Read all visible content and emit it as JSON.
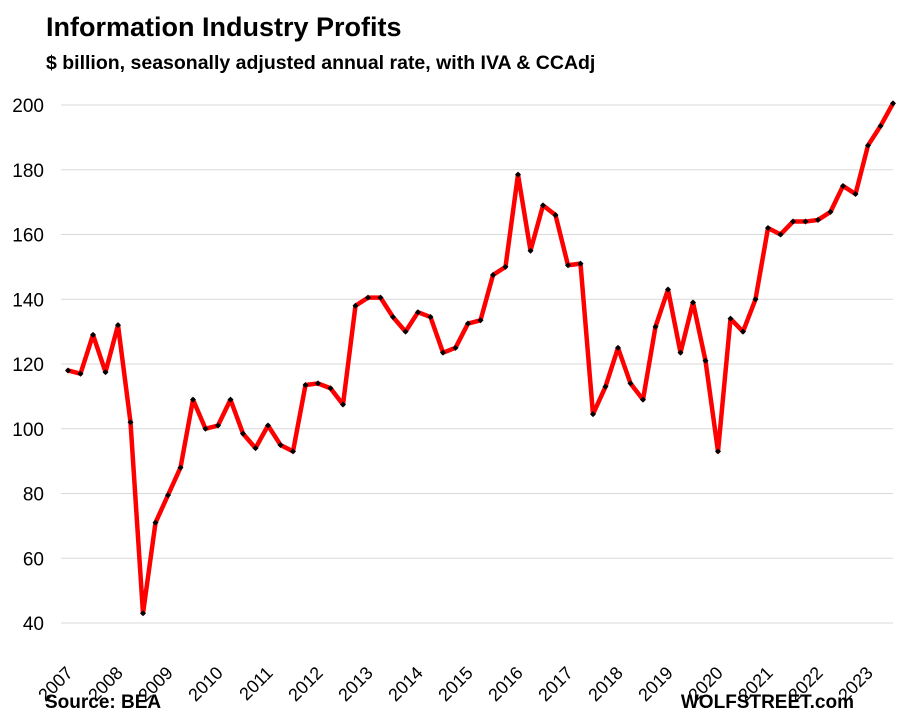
{
  "header": {
    "title": "Information Industry Profits",
    "subtitle": "$ billion, seasonally adjusted annual rate, with IVA & CCAdj"
  },
  "footer": {
    "source": "Source: BEA",
    "brand": "WOLFSTREET.com"
  },
  "chart_data": {
    "type": "line",
    "title": "Information Industry Profits",
    "subtitle": "$ billion, seasonally adjusted annual rate, with IVA & CCAdj",
    "x_tick_labels": [
      "2007",
      "2008",
      "2009",
      "2010",
      "2011",
      "2012",
      "2013",
      "2014",
      "2015",
      "2016",
      "2017",
      "2018",
      "2019",
      "2020",
      "2021",
      "2022",
      "2023"
    ],
    "y_ticks": [
      40,
      60,
      80,
      100,
      120,
      140,
      160,
      180,
      200
    ],
    "ylim": [
      40,
      200
    ],
    "grid": true,
    "line_color": "#ff0000",
    "marker_color": "#000000",
    "series": [
      {
        "x": [
          "2007 Q1",
          "2007 Q2",
          "2007 Q3",
          "2007 Q4",
          "2008 Q1",
          "2008 Q2",
          "2008 Q3",
          "2008 Q4",
          "2009 Q1",
          "2009 Q2",
          "2009 Q3",
          "2009 Q4",
          "2010 Q1",
          "2010 Q2",
          "2010 Q3",
          "2010 Q4",
          "2011 Q1",
          "2011 Q2",
          "2011 Q3",
          "2011 Q4",
          "2012 Q1",
          "2012 Q2",
          "2012 Q3",
          "2012 Q4",
          "2013 Q1",
          "2013 Q2",
          "2013 Q3",
          "2013 Q4",
          "2014 Q1",
          "2014 Q2",
          "2014 Q3",
          "2014 Q4",
          "2015 Q1",
          "2015 Q2",
          "2015 Q3",
          "2015 Q4",
          "2016 Q1",
          "2016 Q2",
          "2016 Q3",
          "2016 Q4",
          "2017 Q1",
          "2017 Q2",
          "2017 Q3",
          "2017 Q4",
          "2018 Q1",
          "2018 Q2",
          "2018 Q3",
          "2018 Q4",
          "2019 Q1",
          "2019 Q2",
          "2019 Q3",
          "2019 Q4",
          "2020 Q1",
          "2020 Q2",
          "2020 Q3",
          "2020 Q4",
          "2021 Q1",
          "2021 Q2",
          "2021 Q3",
          "2021 Q4",
          "2022 Q1",
          "2022 Q2",
          "2022 Q3",
          "2022 Q4",
          "2023 Q1",
          "2023 Q2",
          "2023 Q3"
        ],
        "values": [
          118,
          117,
          129,
          117.5,
          132,
          102,
          43,
          71,
          79.5,
          88,
          109,
          100,
          101,
          109,
          98.5,
          94,
          101,
          95,
          93,
          113.5,
          114,
          112.5,
          107.5,
          138,
          140.5,
          140.5,
          134.5,
          130,
          136,
          134.5,
          123.5,
          125,
          132.5,
          133.5,
          147.5,
          150,
          178.5,
          155,
          169,
          166,
          150.5,
          151,
          104.5,
          113,
          125,
          114,
          109,
          131.5,
          143,
          123.5,
          139,
          121,
          93,
          134,
          130,
          140,
          162,
          160,
          164,
          164,
          164.5,
          167,
          175,
          172.5,
          187.5,
          193.5,
          200.5
        ]
      }
    ]
  }
}
